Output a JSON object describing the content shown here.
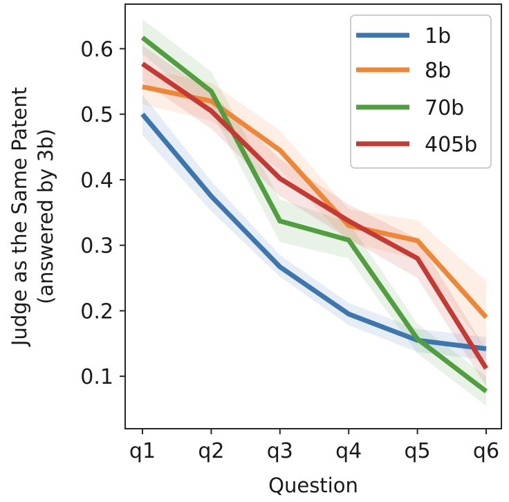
{
  "chart_data": {
    "type": "line",
    "title": "",
    "xlabel": "Question",
    "ylabel_lines": [
      "Judge as the Same Patent",
      "(answered by 3b)"
    ],
    "categories": [
      "q1",
      "q2",
      "q3",
      "q4",
      "q5",
      "q6"
    ],
    "ylim": [
      0.02,
      0.668
    ],
    "yticks": [
      0.1,
      0.2,
      0.3,
      0.4,
      0.5,
      0.6
    ],
    "ytick_labels": [
      "0.1",
      "0.2",
      "0.3",
      "0.4",
      "0.5",
      "0.6"
    ],
    "grid": false,
    "legend": "top-right",
    "series": [
      {
        "name": "1b",
        "color": "#3b76af",
        "values": [
          0.5,
          0.375,
          0.267,
          0.195,
          0.155,
          0.142
        ],
        "lower": [
          0.468,
          0.352,
          0.252,
          0.178,
          0.137,
          0.125
        ],
        "upper": [
          0.53,
          0.398,
          0.285,
          0.212,
          0.172,
          0.16
        ]
      },
      {
        "name": "8b",
        "color": "#ef8636",
        "values": [
          0.542,
          0.52,
          0.445,
          0.33,
          0.307,
          0.19
        ],
        "lower": [
          0.515,
          0.49,
          0.415,
          0.305,
          0.278,
          0.14
        ],
        "upper": [
          0.57,
          0.548,
          0.475,
          0.355,
          0.338,
          0.245
        ]
      },
      {
        "name": "70b",
        "color": "#519e3e",
        "values": [
          0.617,
          0.535,
          0.337,
          0.308,
          0.157,
          0.077
        ],
        "lower": [
          0.592,
          0.505,
          0.305,
          0.28,
          0.135,
          0.055
        ],
        "upper": [
          0.645,
          0.565,
          0.37,
          0.335,
          0.18,
          0.1
        ]
      },
      {
        "name": "405b",
        "color": "#c43932",
        "values": [
          0.577,
          0.505,
          0.402,
          0.337,
          0.28,
          0.112
        ],
        "lower": [
          0.55,
          0.478,
          0.375,
          0.31,
          0.25,
          0.085
        ],
        "upper": [
          0.605,
          0.532,
          0.432,
          0.362,
          0.31,
          0.14
        ]
      }
    ]
  }
}
